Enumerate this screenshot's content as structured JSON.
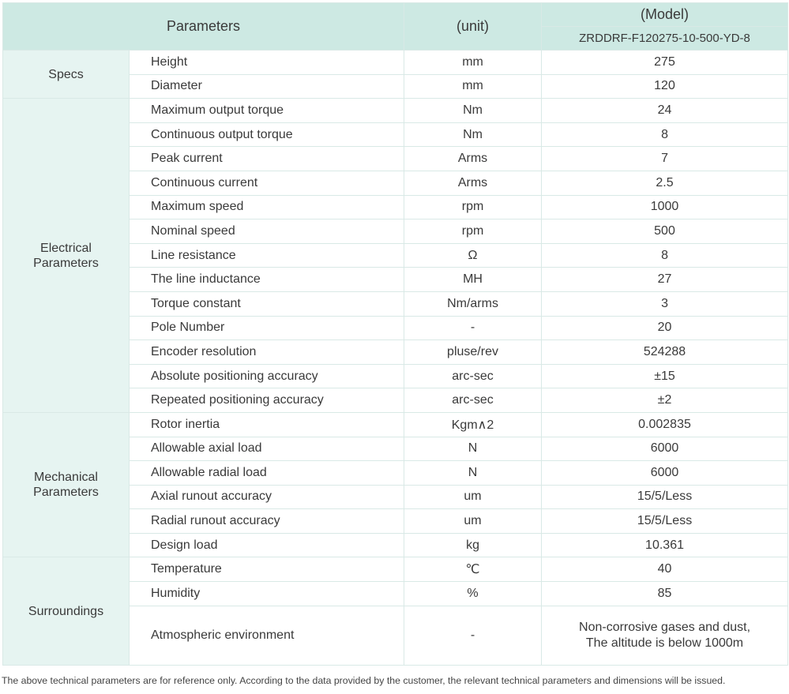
{
  "header": {
    "parameters": "Parameters",
    "unit": "(unit)",
    "model": "(Model)",
    "model_name": "ZRDDRF-F120275-10-500-YD-8"
  },
  "groups": [
    {
      "name": "Specs",
      "rows": [
        {
          "param": "Height",
          "unit": "mm",
          "value": "275"
        },
        {
          "param": "Diameter",
          "unit": "mm",
          "value": "120"
        }
      ]
    },
    {
      "name": "Electrical Parameters",
      "rows": [
        {
          "param": "Maximum output torque",
          "unit": "Nm",
          "value": "24"
        },
        {
          "param": "Continuous output torque",
          "unit": "Nm",
          "value": "8"
        },
        {
          "param": "Peak current",
          "unit": "Arms",
          "value": "7"
        },
        {
          "param": "Continuous current",
          "unit": "Arms",
          "value": "2.5"
        },
        {
          "param": "Maximum speed",
          "unit": "rpm",
          "value": "1000"
        },
        {
          "param": "Nominal speed",
          "unit": "rpm",
          "value": "500"
        },
        {
          "param": "Line resistance",
          "unit": "Ω",
          "value": "8"
        },
        {
          "param": "The line inductance",
          "unit": "MH",
          "value": "27"
        },
        {
          "param": "Torque constant",
          "unit": "Nm/arms",
          "value": "3"
        },
        {
          "param": "Pole Number",
          "unit": "-",
          "value": "20"
        },
        {
          "param": "Encoder resolution",
          "unit": "pluse/rev",
          "value": "524288"
        },
        {
          "param": "Absolute positioning accuracy",
          "unit": "arc-sec",
          "value": "±15"
        },
        {
          "param": "Repeated positioning accuracy",
          "unit": "arc-sec",
          "value": "±2"
        }
      ]
    },
    {
      "name": "Mechanical Parameters",
      "rows": [
        {
          "param": "Rotor inertia",
          "unit": "Kgm∧2",
          "value": "0.002835"
        },
        {
          "param": "Allowable axial load",
          "unit": "N",
          "value": "6000"
        },
        {
          "param": "Allowable radial load",
          "unit": "N",
          "value": "6000"
        },
        {
          "param": "Axial runout accuracy",
          "unit": "um",
          "value": "15/5/Less"
        },
        {
          "param": "Radial runout accuracy",
          "unit": "um",
          "value": "15/5/Less"
        },
        {
          "param": "Design load",
          "unit": "kg",
          "value": "10.361"
        }
      ]
    },
    {
      "name": "Surroundings",
      "rows": [
        {
          "param": "Temperature",
          "unit": "℃",
          "value": "40"
        },
        {
          "param": "Humidity",
          "unit": "%",
          "value": "85"
        },
        {
          "param": "Atmospheric environment",
          "unit": "-",
          "value": [
            "Non-corrosive gases and dust,",
            "The altitude is below 1000m"
          ]
        }
      ]
    }
  ],
  "footnote": "The above technical parameters are for reference only. According to the data provided by the customer, the relevant technical parameters and dimensions will be issued."
}
